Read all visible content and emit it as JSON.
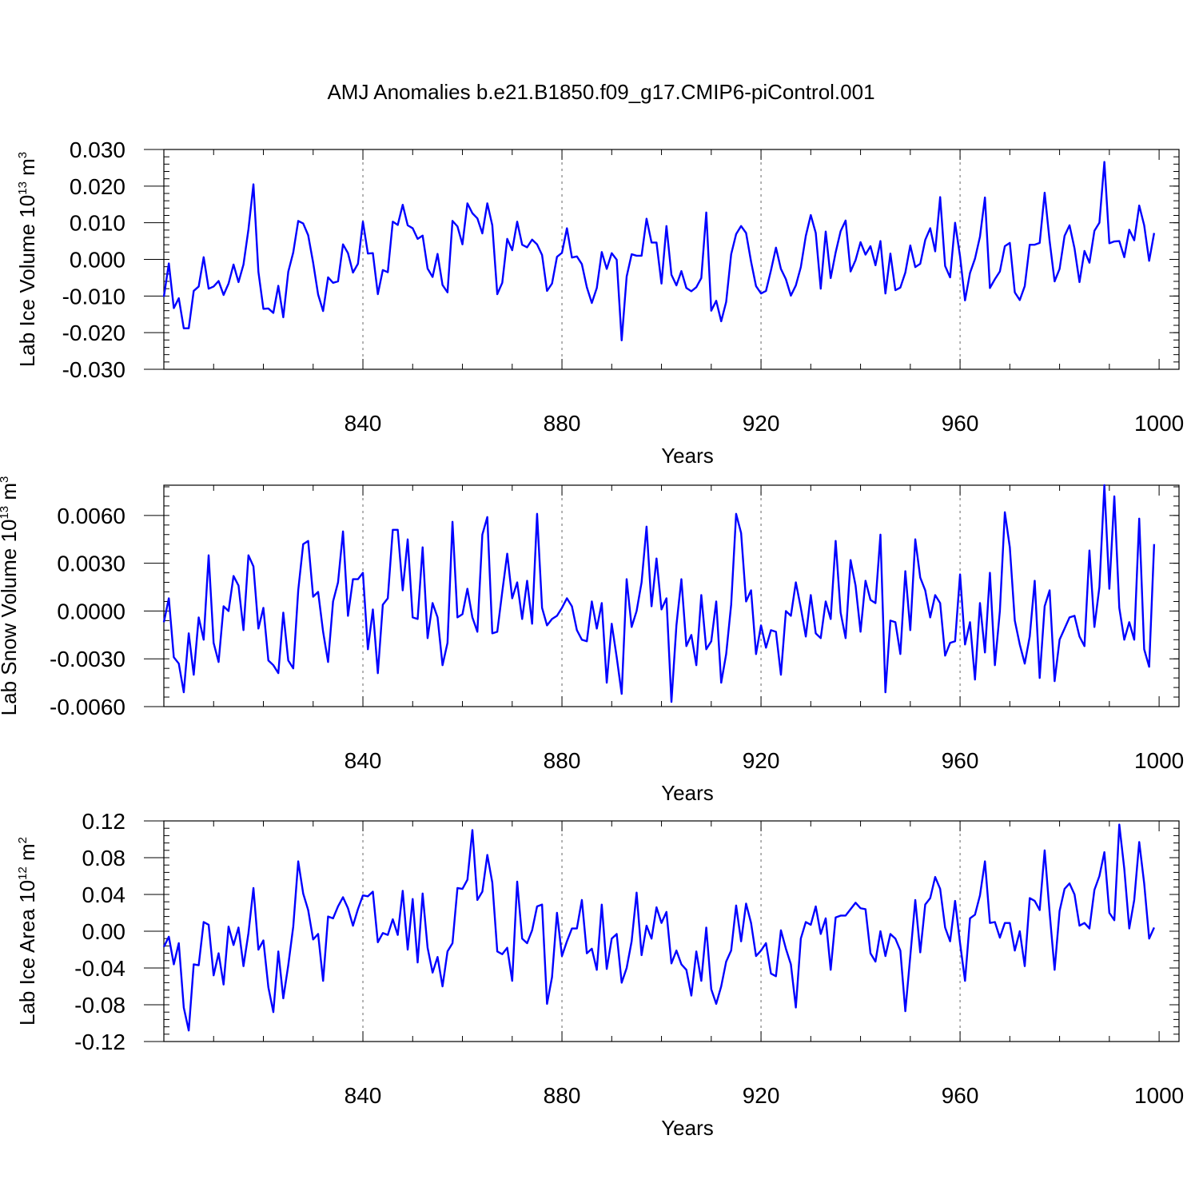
{
  "figure_title": "AMJ Anomalies b.e21.B1850.f09_g17.CMIP6-piControl.001",
  "line_color": "#0000ff",
  "chart_data": [
    {
      "type": "line",
      "ylabel_main": "Lab Ice Volume 10",
      "ylabel_exp": "13",
      "ylabel_unit": " m",
      "ylabel_unit_exp": "3",
      "xlabel": "Years",
      "xlim": [
        800,
        1004
      ],
      "ylim": [
        -0.03,
        0.03
      ],
      "xticks": [
        840,
        880,
        920,
        960,
        1000
      ],
      "xtick_labels": [
        "840",
        "880",
        "920",
        "960",
        "1000"
      ],
      "yticks": [
        -0.03,
        -0.02,
        -0.01,
        0.0,
        0.01,
        0.02,
        0.03
      ],
      "ytick_labels": [
        "-0.030",
        "-0.020",
        "-0.010",
        "0.000",
        "0.010",
        "0.020",
        "0.030"
      ],
      "x_start": 800,
      "values": [
        -0.0102,
        -0.0011,
        -0.0133,
        -0.0106,
        -0.0188,
        -0.0188,
        -0.0086,
        -0.0074,
        0.0006,
        -0.008,
        -0.0074,
        -0.0059,
        -0.0097,
        -0.0066,
        -0.0014,
        -0.0062,
        -0.0014,
        0.0082,
        0.0205,
        -0.0034,
        -0.0135,
        -0.0134,
        -0.0146,
        -0.0072,
        -0.0158,
        -0.0034,
        0.0019,
        0.0105,
        0.0098,
        0.0066,
        -0.0009,
        -0.0096,
        -0.0141,
        -0.0049,
        -0.0064,
        -0.006,
        0.0041,
        0.0017,
        -0.0036,
        -0.0012,
        0.0103,
        0.0016,
        0.0017,
        -0.0095,
        -0.0029,
        -0.0035,
        0.0103,
        0.0094,
        0.0149,
        0.0093,
        0.0085,
        0.0056,
        0.0065,
        -0.0025,
        -0.0048,
        0.0015,
        -0.007,
        -0.009,
        0.0105,
        0.009,
        0.0041,
        0.0153,
        0.0126,
        0.0112,
        0.0071,
        0.0153,
        0.0093,
        -0.0095,
        -0.0064,
        0.0056,
        0.0025,
        0.0103,
        0.004,
        0.0033,
        0.0054,
        0.0041,
        0.0012,
        -0.0086,
        -0.0066,
        0.0007,
        0.0018,
        0.0085,
        0.0005,
        0.0008,
        -0.0013,
        -0.0076,
        -0.0119,
        -0.0078,
        0.002,
        -0.0026,
        0.0017,
        -0.0001,
        -0.0221,
        -0.0047,
        0.0014,
        0.001,
        0.001,
        0.0111,
        0.0046,
        0.0046,
        -0.0066,
        0.0091,
        -0.0042,
        -0.0071,
        -0.0032,
        -0.0078,
        -0.0087,
        -0.0076,
        -0.0051,
        0.0128,
        -0.014,
        -0.0113,
        -0.0169,
        -0.0116,
        0.0014,
        0.0069,
        0.0091,
        0.0072,
        -0.0006,
        -0.0073,
        -0.0093,
        -0.0086,
        -0.003,
        0.0032,
        -0.0026,
        -0.0054,
        -0.0099,
        -0.0071,
        -0.0021,
        0.0064,
        0.0121,
        0.0072,
        -0.008,
        0.0076,
        -0.0051,
        0.0019,
        0.0077,
        0.0106,
        -0.0033,
        -0.0002,
        0.0047,
        0.0013,
        0.0036,
        -0.0016,
        0.005,
        -0.0093,
        0.0016,
        -0.0084,
        -0.0077,
        -0.0036,
        0.0038,
        -0.0021,
        -0.0012,
        0.0053,
        0.0085,
        0.0022,
        0.017,
        -0.0018,
        -0.0049,
        0.01,
        0.0008,
        -0.0112,
        -0.0037,
        0.0002,
        0.0062,
        0.0169,
        -0.0078,
        -0.0054,
        -0.0033,
        0.0036,
        0.0045,
        -0.009,
        -0.0111,
        -0.0073,
        0.004,
        0.004,
        0.0045,
        0.0182,
        0.005,
        -0.006,
        -0.0026,
        0.0064,
        0.0093,
        0.003,
        -0.0062,
        0.0023,
        -0.0009,
        0.0078,
        0.01,
        0.0266,
        0.0044,
        0.0049,
        0.005,
        0.0006,
        0.0081,
        0.0052,
        0.0147,
        0.0093,
        -0.0004,
        0.0072
      ]
    },
    {
      "type": "line",
      "ylabel_main": "Lab Snow Volume 10",
      "ylabel_exp": "13",
      "ylabel_unit": " m",
      "ylabel_unit_exp": "3",
      "xlabel": "Years",
      "xlim": [
        800,
        1004
      ],
      "ylim": [
        -0.006,
        0.0079
      ],
      "xticks": [
        840,
        880,
        920,
        960,
        1000
      ],
      "xtick_labels": [
        "840",
        "880",
        "920",
        "960",
        "1000"
      ],
      "yticks": [
        -0.006,
        -0.003,
        0.0,
        0.003,
        0.006
      ],
      "ytick_labels": [
        "-0.0060",
        "-0.0030",
        "0.0000",
        "0.0030",
        "0.0060"
      ],
      "x_start": 800,
      "values": [
        -0.0007,
        0.0008,
        -0.0029,
        -0.0033,
        -0.0051,
        -0.0014,
        -0.004,
        -0.0004,
        -0.0018,
        0.0035,
        -0.002,
        -0.0032,
        0.0003,
        0.0,
        0.0022,
        0.0016,
        -0.0012,
        0.0035,
        0.0028,
        -0.0011,
        0.0002,
        -0.0031,
        -0.0034,
        -0.0039,
        -0.0001,
        -0.0031,
        -0.0036,
        0.0013,
        0.0042,
        0.0044,
        0.0009,
        0.0012,
        -0.0013,
        -0.0032,
        0.0006,
        0.0018,
        0.005,
        -0.0003,
        0.002,
        0.002,
        0.0024,
        -0.0024,
        0.0001,
        -0.0039,
        0.0004,
        0.0008,
        0.0051,
        0.0051,
        0.0013,
        0.0045,
        -0.0004,
        -0.0005,
        0.004,
        -0.0017,
        0.0005,
        -0.0004,
        -0.0034,
        -0.002,
        0.0056,
        -0.0004,
        -0.0002,
        0.0014,
        -0.0004,
        -0.0013,
        0.0048,
        0.0059,
        -0.0014,
        -0.0013,
        0.0012,
        0.0036,
        0.0008,
        0.0018,
        -0.0005,
        0.0019,
        -0.0008,
        0.0061,
        0.0002,
        -0.0009,
        -0.0005,
        -0.0003,
        0.0002,
        0.0008,
        0.0003,
        -0.0012,
        -0.0018,
        -0.0019,
        0.0006,
        -0.0011,
        0.0005,
        -0.0045,
        -0.0008,
        -0.0029,
        -0.0052,
        0.002,
        -0.001,
        0.0,
        0.0018,
        0.0053,
        0.0003,
        0.0033,
        0.0001,
        0.0008,
        -0.0057,
        -0.0009,
        0.002,
        -0.0022,
        -0.0015,
        -0.0034,
        0.001,
        -0.0024,
        -0.0019,
        0.0006,
        -0.0045,
        -0.0027,
        0.0004,
        0.0061,
        0.0049,
        0.0006,
        0.0013,
        -0.0027,
        -0.0009,
        -0.0023,
        -0.0012,
        -0.0013,
        -0.004,
        0.0,
        -0.0003,
        0.0018,
        0.0002,
        -0.0016,
        0.001,
        -0.0014,
        -0.0017,
        0.0006,
        -0.0005,
        0.0044,
        -0.0001,
        -0.0017,
        0.0032,
        0.0016,
        -0.0013,
        0.0019,
        0.0007,
        0.0005,
        0.0048,
        -0.0051,
        -0.0006,
        -0.0007,
        -0.0027,
        0.0025,
        -0.0012,
        0.0045,
        0.0021,
        0.0013,
        -0.0004,
        0.001,
        0.0005,
        -0.0028,
        -0.002,
        -0.0019,
        0.0023,
        -0.0021,
        -0.0007,
        -0.0043,
        0.0005,
        -0.0026,
        0.0024,
        -0.0034,
        0.0,
        0.0062,
        0.004,
        -0.0006,
        -0.0021,
        -0.0033,
        -0.0016,
        0.0019,
        -0.0042,
        0.0003,
        0.0013,
        -0.0044,
        -0.0018,
        -0.0011,
        -0.0004,
        -0.0003,
        -0.0016,
        -0.0022,
        0.0038,
        -0.001,
        0.0015,
        0.0079,
        0.0014,
        0.0072,
        0.0002,
        -0.0018,
        -0.0007,
        -0.0018,
        0.0058,
        -0.0024,
        -0.0035,
        0.0042
      ]
    },
    {
      "type": "line",
      "ylabel_main": "Lab Ice Area 10",
      "ylabel_exp": "12",
      "ylabel_unit": " m",
      "ylabel_unit_exp": "2",
      "xlabel": "Years",
      "xlim": [
        800,
        1004
      ],
      "ylim": [
        -0.12,
        0.12
      ],
      "xticks": [
        840,
        880,
        920,
        960,
        1000
      ],
      "xtick_labels": [
        "840",
        "880",
        "920",
        "960",
        "1000"
      ],
      "yticks": [
        -0.12,
        -0.08,
        -0.04,
        0.0,
        0.04,
        0.08,
        0.12
      ],
      "ytick_labels": [
        "-0.12",
        "-0.08",
        "-0.04",
        "0.00",
        "0.04",
        "0.08",
        "0.12"
      ],
      "x_start": 800,
      "values": [
        -0.017,
        -0.006,
        -0.036,
        -0.013,
        -0.083,
        -0.108,
        -0.036,
        -0.037,
        0.01,
        0.007,
        -0.048,
        -0.024,
        -0.058,
        0.005,
        -0.015,
        0.004,
        -0.038,
        -0.002,
        0.047,
        -0.02,
        -0.01,
        -0.061,
        -0.088,
        -0.022,
        -0.073,
        -0.037,
        0.005,
        0.076,
        0.041,
        0.023,
        -0.009,
        -0.003,
        -0.054,
        0.016,
        0.014,
        0.027,
        0.037,
        0.025,
        0.006,
        0.024,
        0.039,
        0.038,
        0.043,
        -0.012,
        -0.002,
        -0.004,
        0.013,
        -0.004,
        0.044,
        -0.02,
        0.035,
        -0.034,
        0.041,
        -0.018,
        -0.045,
        -0.028,
        -0.06,
        -0.022,
        -0.013,
        0.047,
        0.046,
        0.056,
        0.11,
        0.034,
        0.043,
        0.083,
        0.053,
        -0.022,
        -0.025,
        -0.018,
        -0.054,
        0.054,
        -0.008,
        -0.013,
        0.001,
        0.027,
        0.029,
        -0.079,
        -0.05,
        0.02,
        -0.027,
        -0.011,
        0.003,
        0.003,
        0.034,
        -0.024,
        -0.019,
        -0.042,
        0.029,
        -0.041,
        -0.008,
        -0.003,
        -0.056,
        -0.04,
        -0.011,
        0.042,
        -0.026,
        0.006,
        -0.008,
        0.026,
        0.009,
        0.021,
        -0.035,
        -0.021,
        -0.036,
        -0.042,
        -0.07,
        -0.022,
        -0.054,
        0.004,
        -0.063,
        -0.079,
        -0.06,
        -0.033,
        -0.021,
        0.028,
        -0.011,
        0.03,
        0.009,
        -0.027,
        -0.021,
        -0.013,
        -0.046,
        -0.049,
        0.001,
        -0.019,
        -0.036,
        -0.083,
        -0.008,
        0.01,
        0.007,
        0.027,
        -0.003,
        0.014,
        -0.042,
        0.015,
        0.017,
        0.017,
        0.024,
        0.031,
        0.025,
        0.024,
        -0.024,
        -0.033,
        0.0,
        -0.027,
        -0.003,
        -0.008,
        -0.021,
        -0.087,
        -0.027,
        0.034,
        -0.023,
        0.029,
        0.036,
        0.059,
        0.046,
        0.004,
        -0.011,
        0.033,
        -0.013,
        -0.054,
        0.014,
        0.018,
        0.039,
        0.076,
        0.009,
        0.01,
        -0.007,
        0.009,
        0.009,
        -0.021,
        0.0,
        -0.038,
        0.036,
        0.033,
        0.023,
        0.088,
        0.02,
        -0.042,
        0.022,
        0.046,
        0.052,
        0.04,
        0.006,
        0.009,
        0.003,
        0.045,
        0.06,
        0.086,
        0.02,
        0.012,
        0.116,
        0.068,
        0.003,
        0.034,
        0.097,
        0.052,
        -0.008,
        0.004
      ]
    }
  ]
}
